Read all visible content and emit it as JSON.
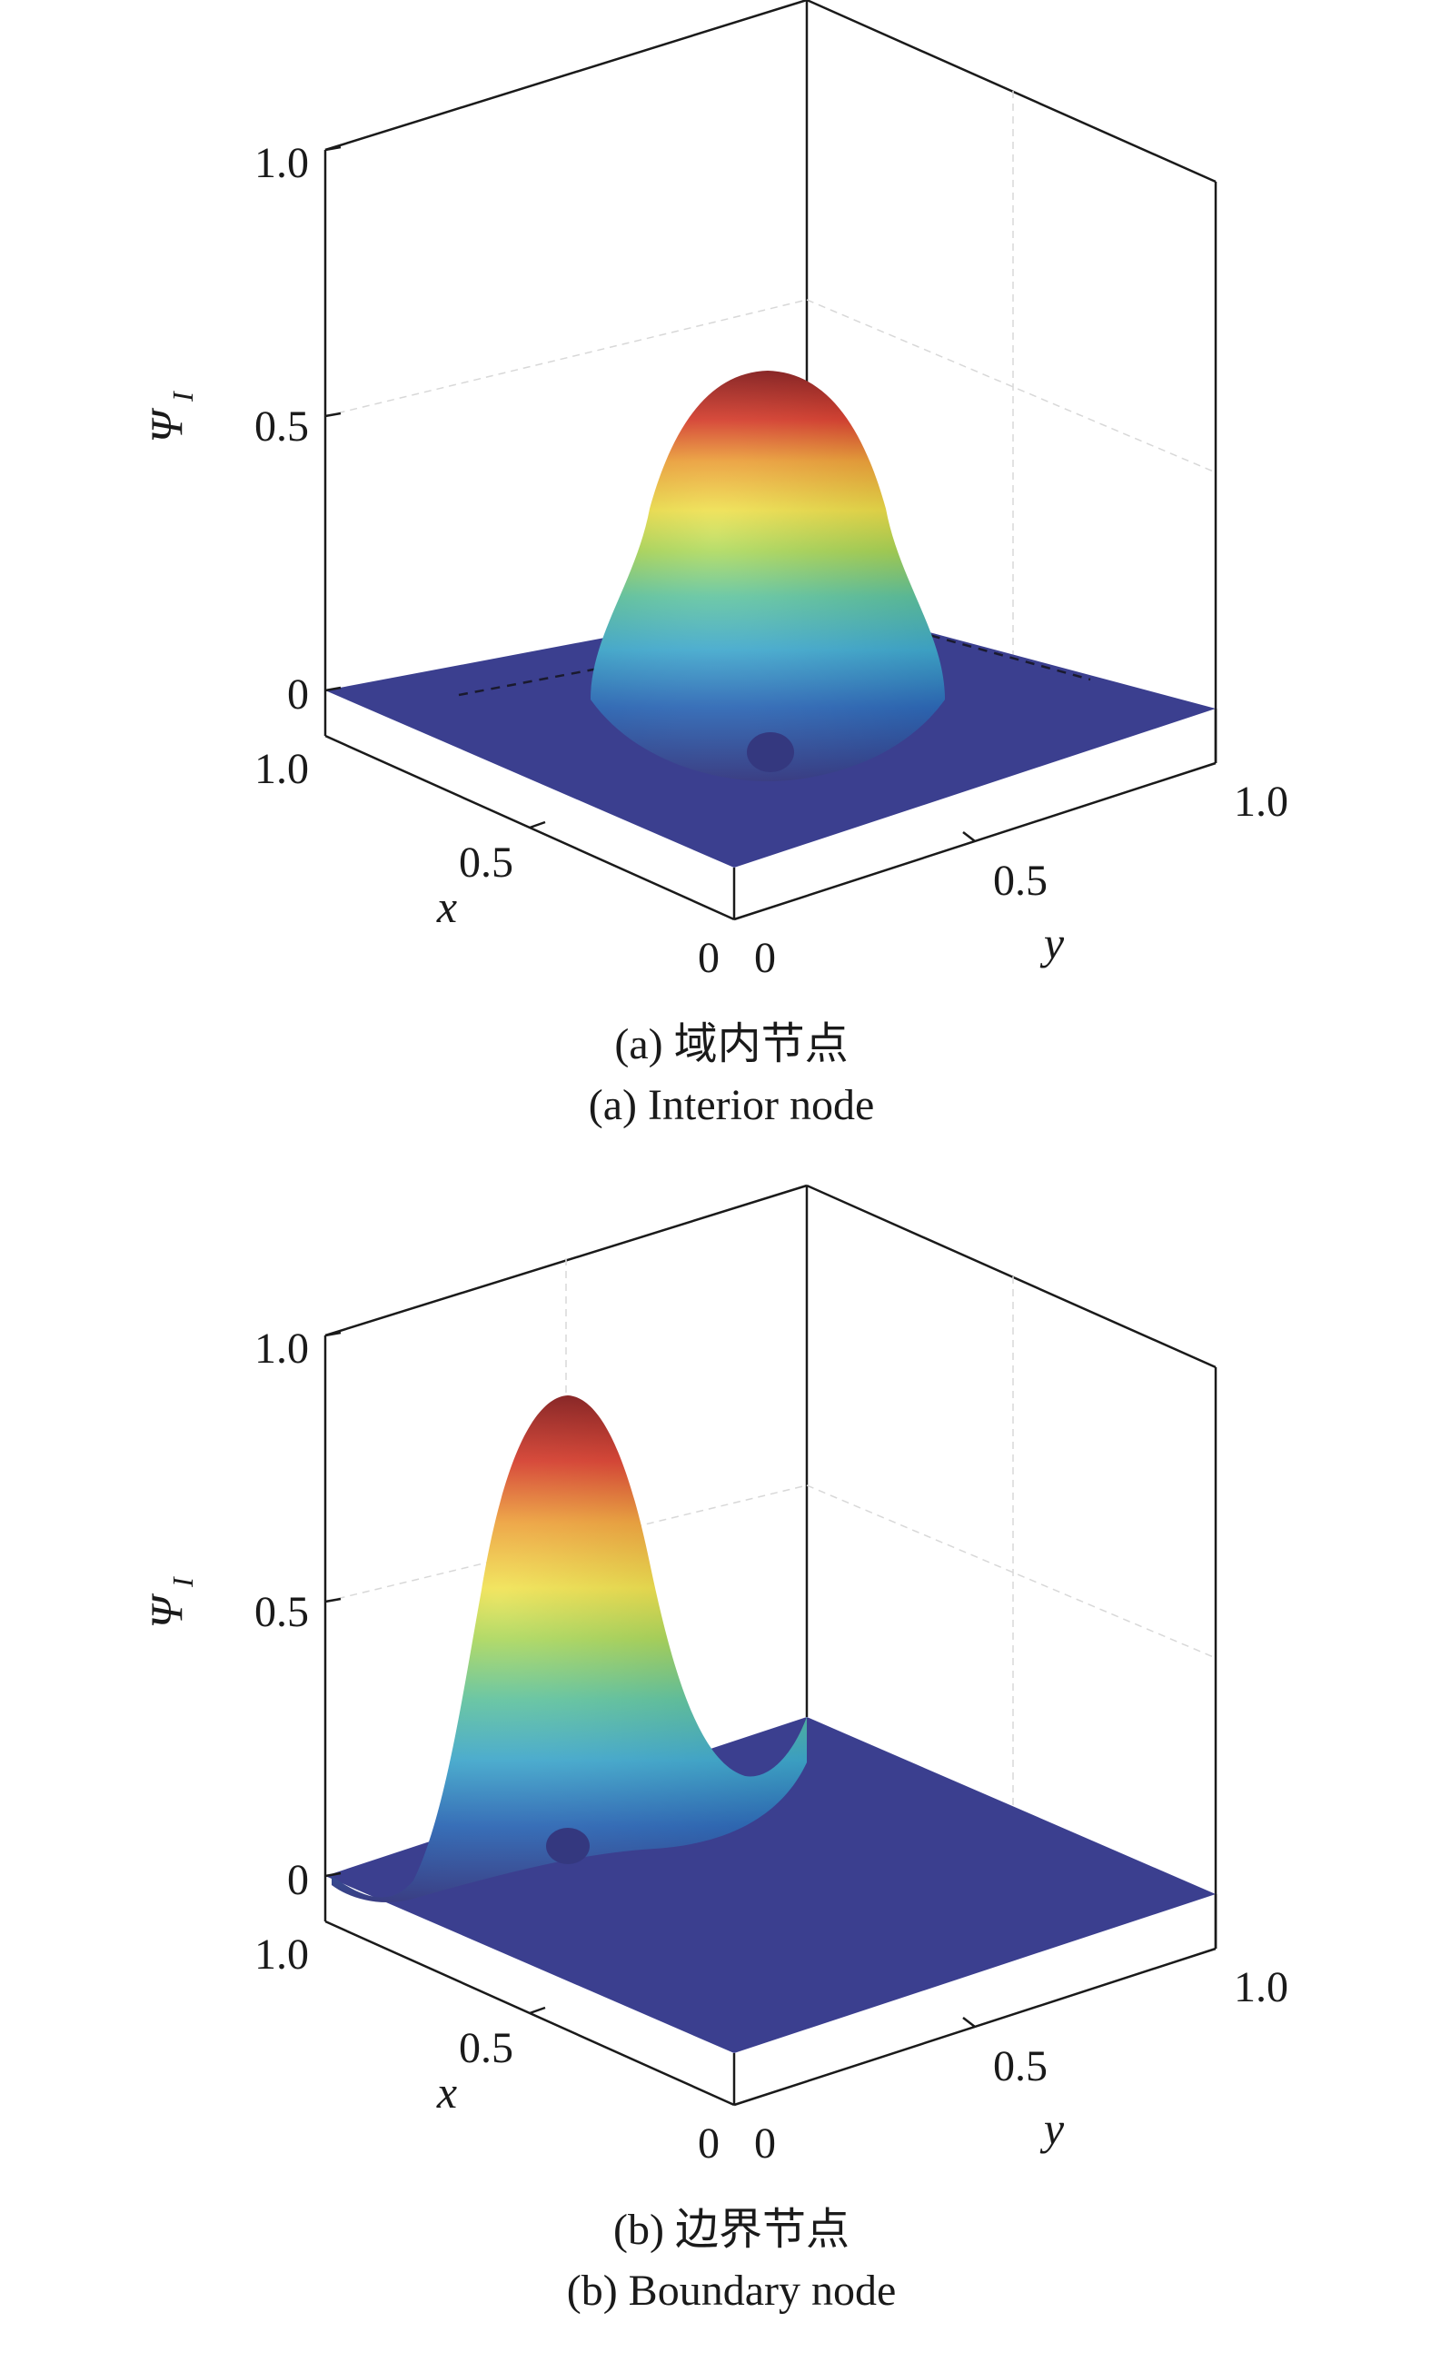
{
  "chart_data": [
    {
      "type": "surface",
      "caption_cn": "(a) 域内节点",
      "caption_en": "(a) Interior node",
      "xlabel": "x",
      "ylabel": "y",
      "zlabel": "Ψ",
      "zlabel_sub": "I",
      "x_ticks": [
        "0",
        "0.5",
        "1.0"
      ],
      "y_ticks": [
        "0",
        "0.5",
        "1.0"
      ],
      "z_ticks": [
        "0",
        "0.5",
        "1.0"
      ],
      "xlim": [
        0,
        1
      ],
      "ylim": [
        0,
        1
      ],
      "zlim": [
        0,
        1
      ],
      "peak": {
        "x": 0.5,
        "y": 0.5,
        "z": 0.6
      },
      "colormap": [
        "#3b3f8f",
        "#2f6fc4",
        "#3fb0d8",
        "#5cc8a0",
        "#a8d850",
        "#f0e040",
        "#f4a030",
        "#e03a28",
        "#8c1a1a"
      ]
    },
    {
      "type": "surface",
      "caption_cn": "(b) 边界节点",
      "caption_en": "(b) Boundary node",
      "xlabel": "x",
      "ylabel": "y",
      "zlabel": "Ψ",
      "zlabel_sub": "I",
      "x_ticks": [
        "0",
        "0.5",
        "1.0"
      ],
      "y_ticks": [
        "0",
        "0.5",
        "1.0"
      ],
      "z_ticks": [
        "0",
        "0.5",
        "1.0"
      ],
      "xlim": [
        0,
        1
      ],
      "ylim": [
        0,
        1
      ],
      "zlim": [
        0,
        1
      ],
      "peak": {
        "x": 1.0,
        "y": 0.5,
        "z": 0.95
      },
      "colormap": [
        "#3b3f8f",
        "#2f6fc4",
        "#3fb0d8",
        "#5cc8a0",
        "#a8d850",
        "#f0e040",
        "#f4a030",
        "#e03a28",
        "#8c1a1a"
      ]
    }
  ]
}
